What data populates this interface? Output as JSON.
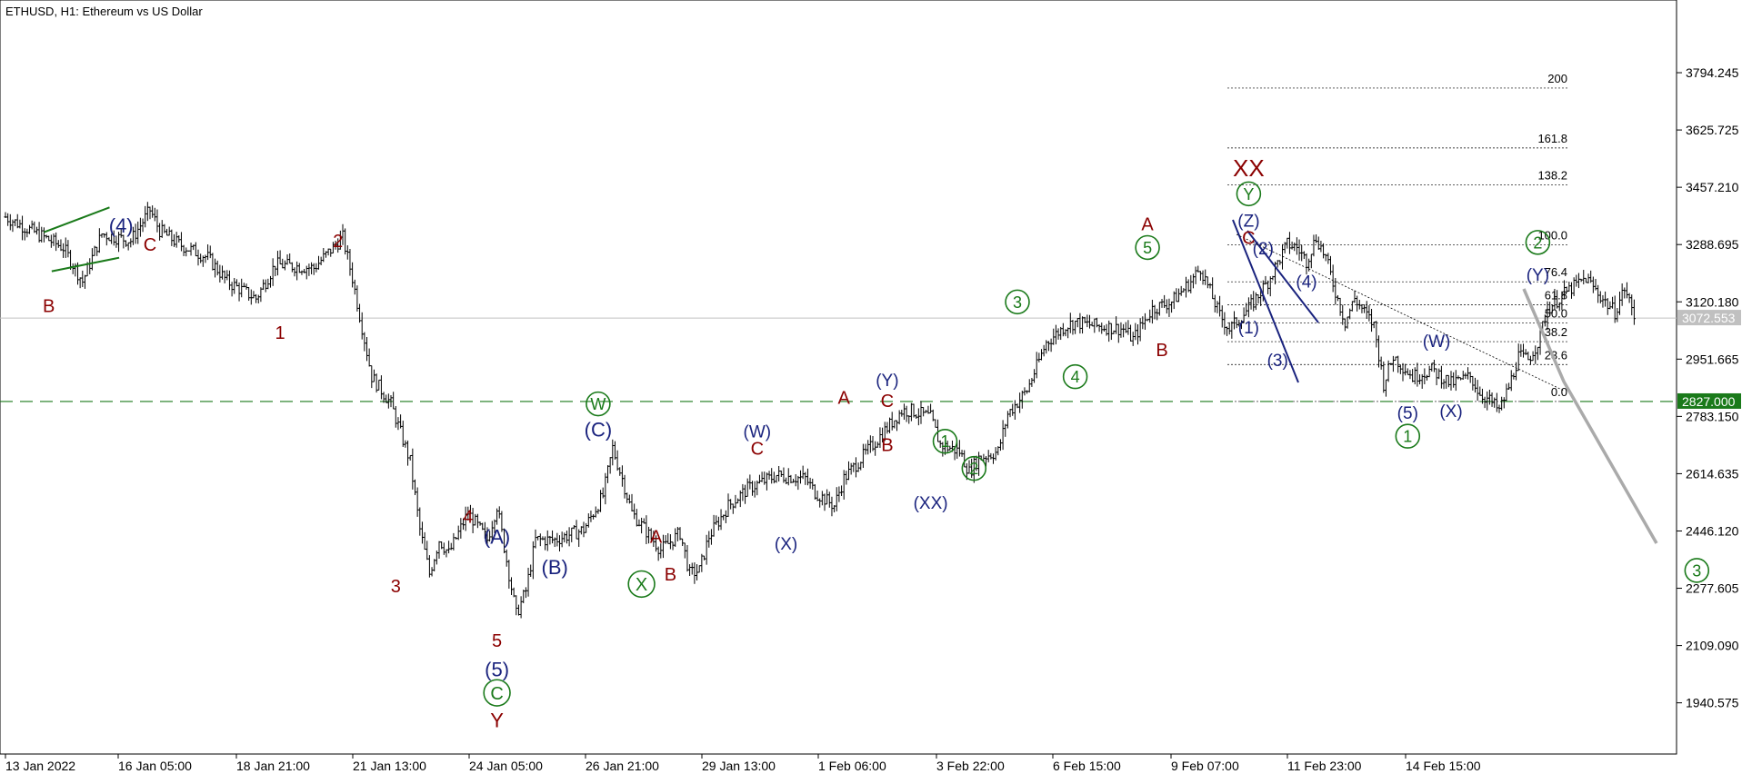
{
  "chart_data": {
    "type": "candlestick",
    "title": "ETHUSD, H1:  Ethereum vs US Dollar",
    "colors": {
      "candles": "#000000",
      "green_line": "#1a7a1a",
      "navy": "#1a237e",
      "darkred": "#8b0000",
      "gray_path": "#aaaaaa",
      "grid_line": "#c0c0c0"
    },
    "y_axis": {
      "ticks": [
        "3794.245",
        "3625.725",
        "3457.210",
        "3288.695",
        "3120.180",
        "2951.665",
        "2783.150",
        "2614.635",
        "2446.120",
        "2277.605",
        "2109.090",
        "1940.575"
      ],
      "range": [
        1790,
        3960
      ]
    },
    "x_axis": {
      "ticks": [
        "13 Jan 2022",
        "16 Jan 05:00",
        "18 Jan 21:00",
        "21 Jan 13:00",
        "24 Jan 05:00",
        "26 Jan 21:00",
        "29 Jan 13:00",
        "1 Feb 06:00",
        "3 Feb 22:00",
        "6 Feb 15:00",
        "9 Feb 07:00",
        "11 Feb 23:00",
        "14 Feb 15:00"
      ]
    },
    "price_key_points": [
      [
        0,
        3370
      ],
      [
        6,
        3280
      ],
      [
        8,
        3180
      ],
      [
        10,
        3320
      ],
      [
        13,
        3300
      ],
      [
        15,
        3390
      ],
      [
        16,
        3330
      ],
      [
        18,
        3290
      ],
      [
        21,
        3250
      ],
      [
        23,
        3180
      ],
      [
        26,
        3130
      ],
      [
        28,
        3230
      ],
      [
        32,
        3220
      ],
      [
        35,
        3310
      ],
      [
        36,
        3190
      ],
      [
        38,
        2900
      ],
      [
        40,
        2820
      ],
      [
        42,
        2650
      ],
      [
        43,
        2450
      ],
      [
        44,
        2320
      ],
      [
        45,
        2420
      ],
      [
        46,
        2380
      ],
      [
        48,
        2500
      ],
      [
        50,
        2420
      ],
      [
        51,
        2520
      ],
      [
        52,
        2360
      ],
      [
        53,
        2200
      ],
      [
        54,
        2270
      ],
      [
        55,
        2420
      ],
      [
        57,
        2420
      ],
      [
        60,
        2450
      ],
      [
        62,
        2550
      ],
      [
        63,
        2690
      ],
      [
        64,
        2600
      ],
      [
        65,
        2500
      ],
      [
        68,
        2390
      ],
      [
        70,
        2440
      ],
      [
        71,
        2320
      ],
      [
        72,
        2330
      ],
      [
        73,
        2430
      ],
      [
        75,
        2520
      ],
      [
        77,
        2570
      ],
      [
        80,
        2610
      ],
      [
        83,
        2600
      ],
      [
        84,
        2560
      ],
      [
        86,
        2520
      ],
      [
        87,
        2600
      ],
      [
        90,
        2700
      ],
      [
        93,
        2800
      ],
      [
        94,
        2800
      ],
      [
        96,
        2780
      ],
      [
        97,
        2700
      ],
      [
        99,
        2680
      ],
      [
        100,
        2620
      ],
      [
        101,
        2660
      ],
      [
        103,
        2680
      ],
      [
        104,
        2790
      ],
      [
        106,
        2860
      ],
      [
        108,
        3000
      ],
      [
        110,
        3050
      ],
      [
        111,
        3060
      ],
      [
        113,
        3050
      ],
      [
        116,
        3040
      ],
      [
        117,
        3010
      ],
      [
        119,
        3100
      ],
      [
        121,
        3120
      ],
      [
        123,
        3180
      ],
      [
        124,
        3220
      ],
      [
        125,
        3150
      ],
      [
        126,
        3080
      ],
      [
        127,
        3040
      ],
      [
        129,
        3100
      ],
      [
        131,
        3180
      ],
      [
        133,
        3290
      ],
      [
        134,
        3280
      ],
      [
        135,
        3240
      ],
      [
        136,
        3310
      ],
      [
        137,
        3250
      ],
      [
        138,
        3150
      ],
      [
        139,
        3060
      ],
      [
        140,
        3130
      ],
      [
        142,
        3050
      ],
      [
        143,
        2880
      ],
      [
        144,
        2960
      ],
      [
        146,
        2900
      ],
      [
        148,
        2920
      ],
      [
        150,
        2880
      ],
      [
        152,
        2900
      ],
      [
        153,
        2850
      ],
      [
        154,
        2830
      ],
      [
        155,
        2800
      ],
      [
        156,
        2870
      ],
      [
        157,
        2960
      ],
      [
        158,
        2950
      ],
      [
        159,
        3000
      ],
      [
        160,
        3100
      ],
      [
        162,
        3150
      ],
      [
        164,
        3190
      ],
      [
        166,
        3120
      ],
      [
        167,
        3090
      ],
      [
        168,
        3160
      ],
      [
        169,
        3080
      ]
    ],
    "fibonacci": {
      "base": 2827.0,
      "top": 3288.0,
      "levels": [
        "200",
        "161.8",
        "138.2",
        "100.0",
        "76.4",
        "61.8",
        "50.0",
        "38.2",
        "23.6",
        "0.0"
      ]
    },
    "current_price": "3072.553",
    "support_price": "2827.000",
    "wave_labels": [
      {
        "text": "(4)",
        "x": 8,
        "y": 3345,
        "color": "navy",
        "size": 22
      },
      {
        "text": "C",
        "x": 10,
        "y": 3290,
        "color": "darkred",
        "size": 20
      },
      {
        "text": "B",
        "x": 3,
        "y": 3110,
        "color": "darkred",
        "size": 20
      },
      {
        "text": "2",
        "x": 23,
        "y": 3300,
        "color": "darkred",
        "size": 20
      },
      {
        "text": "1",
        "x": 19,
        "y": 3030,
        "color": "darkred",
        "size": 20
      },
      {
        "text": "3",
        "x": 27,
        "y": 2285,
        "color": "darkred",
        "size": 20
      },
      {
        "text": "4",
        "x": 32,
        "y": 2490,
        "color": "darkred",
        "size": 20
      },
      {
        "text": "5",
        "x": 34,
        "y": 2125,
        "color": "darkred",
        "size": 20
      },
      {
        "text": "(5)",
        "x": 34,
        "y": 2040,
        "color": "navy",
        "size": 22
      },
      {
        "text": "C",
        "x": 34,
        "y": 1970,
        "color": "green",
        "size": 20,
        "circle": true
      },
      {
        "text": "Y",
        "x": 34,
        "y": 1890,
        "color": "darkred",
        "size": 22
      },
      {
        "text": "(A)",
        "x": 34,
        "y": 2430,
        "color": "navy",
        "size": 22
      },
      {
        "text": "(B)",
        "x": 38,
        "y": 2340,
        "color": "navy",
        "size": 22
      },
      {
        "text": "W",
        "x": 41,
        "y": 2820,
        "color": "green",
        "size": 18,
        "circle": true
      },
      {
        "text": "(C)",
        "x": 41,
        "y": 2745,
        "color": "navy",
        "size": 22
      },
      {
        "text": "X",
        "x": 44,
        "y": 2290,
        "color": "green",
        "size": 20,
        "circle": true
      },
      {
        "text": "A",
        "x": 45,
        "y": 2430,
        "color": "darkred",
        "size": 20
      },
      {
        "text": "B",
        "x": 46,
        "y": 2320,
        "color": "darkred",
        "size": 20
      },
      {
        "text": "(W)",
        "x": 52,
        "y": 2740,
        "color": "navy",
        "size": 19
      },
      {
        "text": "C",
        "x": 52,
        "y": 2690,
        "color": "darkred",
        "size": 20
      },
      {
        "text": "(X)",
        "x": 54,
        "y": 2410,
        "color": "navy",
        "size": 19
      },
      {
        "text": "A",
        "x": 58,
        "y": 2840,
        "color": "darkred",
        "size": 20
      },
      {
        "text": "(Y)",
        "x": 61,
        "y": 2890,
        "color": "navy",
        "size": 19
      },
      {
        "text": "C",
        "x": 61,
        "y": 2830,
        "color": "darkred",
        "size": 20
      },
      {
        "text": "B",
        "x": 61,
        "y": 2700,
        "color": "darkred",
        "size": 20
      },
      {
        "text": "(XX)",
        "x": 64,
        "y": 2530,
        "color": "navy",
        "size": 19
      },
      {
        "text": "1",
        "x": 65,
        "y": 2710,
        "color": "green",
        "size": 18,
        "circle": true
      },
      {
        "text": "2",
        "x": 67,
        "y": 2630,
        "color": "green",
        "size": 18,
        "circle": true
      },
      {
        "text": "3",
        "x": 70,
        "y": 3120,
        "color": "green",
        "size": 18,
        "circle": true
      },
      {
        "text": "4",
        "x": 74,
        "y": 2900,
        "color": "green",
        "size": 18,
        "circle": true
      },
      {
        "text": "A",
        "x": 79,
        "y": 3350,
        "color": "darkred",
        "size": 20
      },
      {
        "text": "5",
        "x": 79,
        "y": 3280,
        "color": "green",
        "size": 18,
        "circle": true
      },
      {
        "text": "B",
        "x": 80,
        "y": 2980,
        "color": "darkred",
        "size": 20
      },
      {
        "text": "XX",
        "x": 86,
        "y": 3515,
        "color": "darkred",
        "size": 26
      },
      {
        "text": "Y",
        "x": 86,
        "y": 3438,
        "color": "green",
        "size": 18,
        "circle": true
      },
      {
        "text": "(Z)",
        "x": 86,
        "y": 3360,
        "color": "navy",
        "size": 19
      },
      {
        "text": "C",
        "x": 86,
        "y": 3310,
        "color": "darkred",
        "size": 20
      },
      {
        "text": "(2)",
        "x": 87,
        "y": 3278,
        "color": "navy",
        "size": 19
      },
      {
        "text": "(4)",
        "x": 90,
        "y": 3180,
        "color": "navy",
        "size": 19
      },
      {
        "text": "(1)",
        "x": 86,
        "y": 3045,
        "color": "navy",
        "size": 19
      },
      {
        "text": "(3)",
        "x": 88,
        "y": 2950,
        "color": "navy",
        "size": 19
      },
      {
        "text": "(W)",
        "x": 99,
        "y": 3005,
        "color": "navy",
        "size": 19
      },
      {
        "text": "(5)",
        "x": 97,
        "y": 2795,
        "color": "navy",
        "size": 19
      },
      {
        "text": "(X)",
        "x": 100,
        "y": 2800,
        "color": "navy",
        "size": 19
      },
      {
        "text": "1",
        "x": 97,
        "y": 2725,
        "color": "green",
        "size": 18,
        "circle": true
      },
      {
        "text": "2",
        "x": 106,
        "y": 3295,
        "color": "green",
        "size": 18,
        "circle": true
      },
      {
        "text": "(Y)",
        "x": 106,
        "y": 3200,
        "color": "navy",
        "size": 19
      },
      {
        "text": "3",
        "x": 117,
        "y": 2330,
        "color": "green",
        "size": 18,
        "circle": true
      }
    ]
  }
}
